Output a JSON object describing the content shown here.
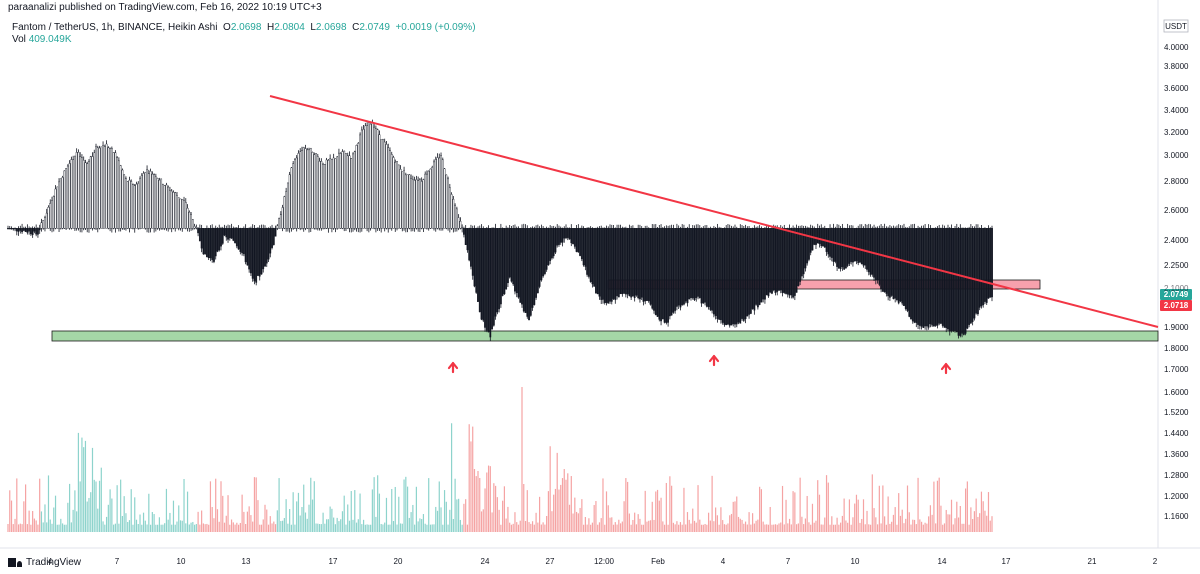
{
  "header": {
    "published": "paraanalizi published on TradingView.com, Feb 16, 2022 10:19 UTC+3"
  },
  "legend": {
    "symbol": "Fantom / TetherUS, 1h, BINANCE, Heikin Ashi",
    "open_label": "O",
    "open": "2.0698",
    "high_label": "H",
    "high": "2.0804",
    "low_label": "L",
    "low": "2.0698",
    "close_label": "C",
    "close": "2.0749",
    "change": "+0.0019 (+0.09%)",
    "vol_label": "Vol",
    "vol": "409.049K"
  },
  "footer": {
    "brand": "TradingView"
  },
  "colors": {
    "up": "#26a69a",
    "down": "#ef5350",
    "trendline": "#f23645",
    "resistance": "#f7a1ad",
    "support": "#a5d6a7",
    "arrow": "#f23645"
  },
  "chart_data": {
    "type": "candlestick",
    "currency": "USDT",
    "y_scale": "log",
    "y_ticks": [
      "4.0000",
      "3.8000",
      "3.6000",
      "3.4000",
      "3.2000",
      "3.0000",
      "2.8000",
      "2.6000",
      "2.4000",
      "2.2500",
      "2.1000",
      "1.9000",
      "1.8000",
      "1.7000",
      "1.6000",
      "1.5200",
      "1.4400",
      "1.3600",
      "1.2800",
      "1.2000",
      "1.1600"
    ],
    "x_ticks": [
      "4",
      "7",
      "10",
      "13",
      "17",
      "20",
      "24",
      "27",
      "12:00",
      "Feb",
      "4",
      "7",
      "10",
      "14",
      "17",
      "21",
      "2"
    ],
    "price_labels": [
      {
        "value": "2.0749",
        "color": "#26a69a"
      },
      {
        "value": "2.0718",
        "color": "#f23645"
      }
    ],
    "partial_tick": "2.1000",
    "price_path": [
      [
        0,
        2.48
      ],
      [
        1,
        2.47
      ],
      [
        2,
        2.46
      ],
      [
        3,
        2.44
      ],
      [
        4,
        2.6
      ],
      [
        5,
        2.78
      ],
      [
        6,
        2.92
      ],
      [
        7,
        3.04
      ],
      [
        8,
        2.94
      ],
      [
        9,
        3.08
      ],
      [
        10,
        3.1
      ],
      [
        11,
        3.02
      ],
      [
        12,
        2.82
      ],
      [
        13,
        2.78
      ],
      [
        14,
        2.9
      ],
      [
        15,
        2.86
      ],
      [
        16,
        2.78
      ],
      [
        17,
        2.72
      ],
      [
        18,
        2.66
      ],
      [
        19,
        2.5
      ],
      [
        20,
        2.3
      ],
      [
        21,
        2.28
      ],
      [
        22,
        2.42
      ],
      [
        23,
        2.4
      ],
      [
        24,
        2.3
      ],
      [
        25,
        2.14
      ],
      [
        26,
        2.22
      ],
      [
        27,
        2.38
      ],
      [
        28,
        2.66
      ],
      [
        29,
        2.96
      ],
      [
        30,
        3.08
      ],
      [
        31,
        3.05
      ],
      [
        32,
        2.95
      ],
      [
        33,
        2.98
      ],
      [
        34,
        3.04
      ],
      [
        35,
        3.0
      ],
      [
        36,
        3.22
      ],
      [
        37,
        3.3
      ],
      [
        38,
        3.15
      ],
      [
        39,
        3.02
      ],
      [
        40,
        2.9
      ],
      [
        41,
        2.84
      ],
      [
        42,
        2.82
      ],
      [
        43,
        2.92
      ],
      [
        44,
        3.02
      ],
      [
        45,
        2.75
      ],
      [
        46,
        2.52
      ],
      [
        47,
        2.25
      ],
      [
        48,
        1.96
      ],
      [
        49,
        1.86
      ],
      [
        50,
        2.02
      ],
      [
        51,
        2.18
      ],
      [
        52,
        2.04
      ],
      [
        53,
        1.94
      ],
      [
        54,
        2.12
      ],
      [
        55,
        2.25
      ],
      [
        56,
        2.38
      ],
      [
        57,
        2.42
      ],
      [
        58,
        2.32
      ],
      [
        59,
        2.18
      ],
      [
        60,
        2.06
      ],
      [
        61,
        2.02
      ],
      [
        62,
        2.07
      ],
      [
        63,
        2.08
      ],
      [
        64,
        2.06
      ],
      [
        65,
        2.04
      ],
      [
        66,
        1.95
      ],
      [
        67,
        1.93
      ],
      [
        68,
        2.01
      ],
      [
        69,
        2.04
      ],
      [
        70,
        2.06
      ],
      [
        71,
        2.02
      ],
      [
        72,
        1.96
      ],
      [
        73,
        1.92
      ],
      [
        74,
        1.91
      ],
      [
        75,
        1.96
      ],
      [
        76,
        2.01
      ],
      [
        77,
        2.06
      ],
      [
        78,
        2.1
      ],
      [
        79,
        2.08
      ],
      [
        80,
        2.07
      ],
      [
        81,
        2.22
      ],
      [
        82,
        2.38
      ],
      [
        83,
        2.36
      ],
      [
        84,
        2.26
      ],
      [
        85,
        2.22
      ],
      [
        86,
        2.28
      ],
      [
        87,
        2.25
      ],
      [
        88,
        2.18
      ],
      [
        89,
        2.09
      ],
      [
        90,
        2.06
      ],
      [
        91,
        2.02
      ],
      [
        92,
        1.93
      ],
      [
        93,
        1.9
      ],
      [
        94,
        1.92
      ],
      [
        95,
        1.91
      ],
      [
        96,
        1.88
      ],
      [
        97,
        1.86
      ],
      [
        98,
        1.93
      ],
      [
        99,
        2.02
      ],
      [
        100,
        2.07
      ]
    ],
    "trendline": {
      "from": [
        "13",
        3.55
      ],
      "to": [
        "21+",
        1.9
      ]
    },
    "resistance_zone": {
      "low": 2.08,
      "high": 2.12
    },
    "support_zone": {
      "low": 1.85,
      "high": 1.88
    },
    "arrows": 3,
    "volume": {
      "max_label": "",
      "peak": 1.0
    }
  }
}
